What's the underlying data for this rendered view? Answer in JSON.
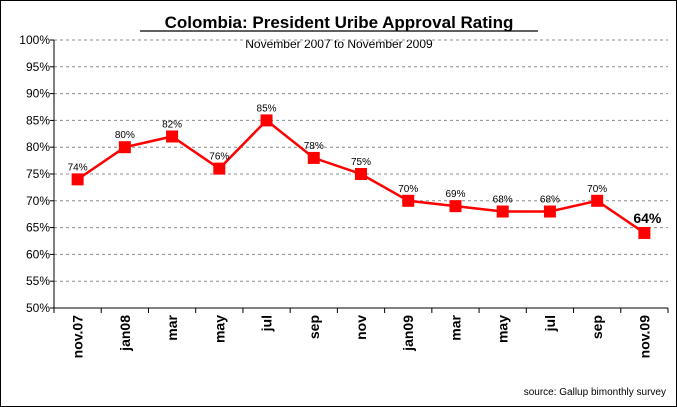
{
  "chart_data": {
    "type": "line",
    "title": "Colombia: President Uribe Approval Rating",
    "subtitle": "November 2007 to November 2009",
    "categories": [
      "nov.07",
      "jan08",
      "mar",
      "may",
      "jul",
      "sep",
      "nov",
      "jan09",
      "mar",
      "may",
      "jul",
      "sep",
      "nov.09"
    ],
    "series": [
      {
        "name": "Approval Rating",
        "values": [
          74,
          80,
          82,
          76,
          85,
          78,
          75,
          70,
          69,
          68,
          68,
          70,
          64
        ],
        "data_labels": [
          "74%",
          "80%",
          "82%",
          "76%",
          "85%",
          "78%",
          "75%",
          "70%",
          "69%",
          "68%",
          "68%",
          "70%",
          "64%"
        ],
        "color": "#ff0000"
      }
    ],
    "y_ticks": [
      "50%",
      "55%",
      "60%",
      "65%",
      "70%",
      "75%",
      "80%",
      "85%",
      "90%",
      "95%",
      "100%"
    ],
    "ylim": [
      50,
      100
    ],
    "grid": true,
    "xlabel": "",
    "ylabel": "",
    "source": "source: Gallup bimonthly survey"
  }
}
